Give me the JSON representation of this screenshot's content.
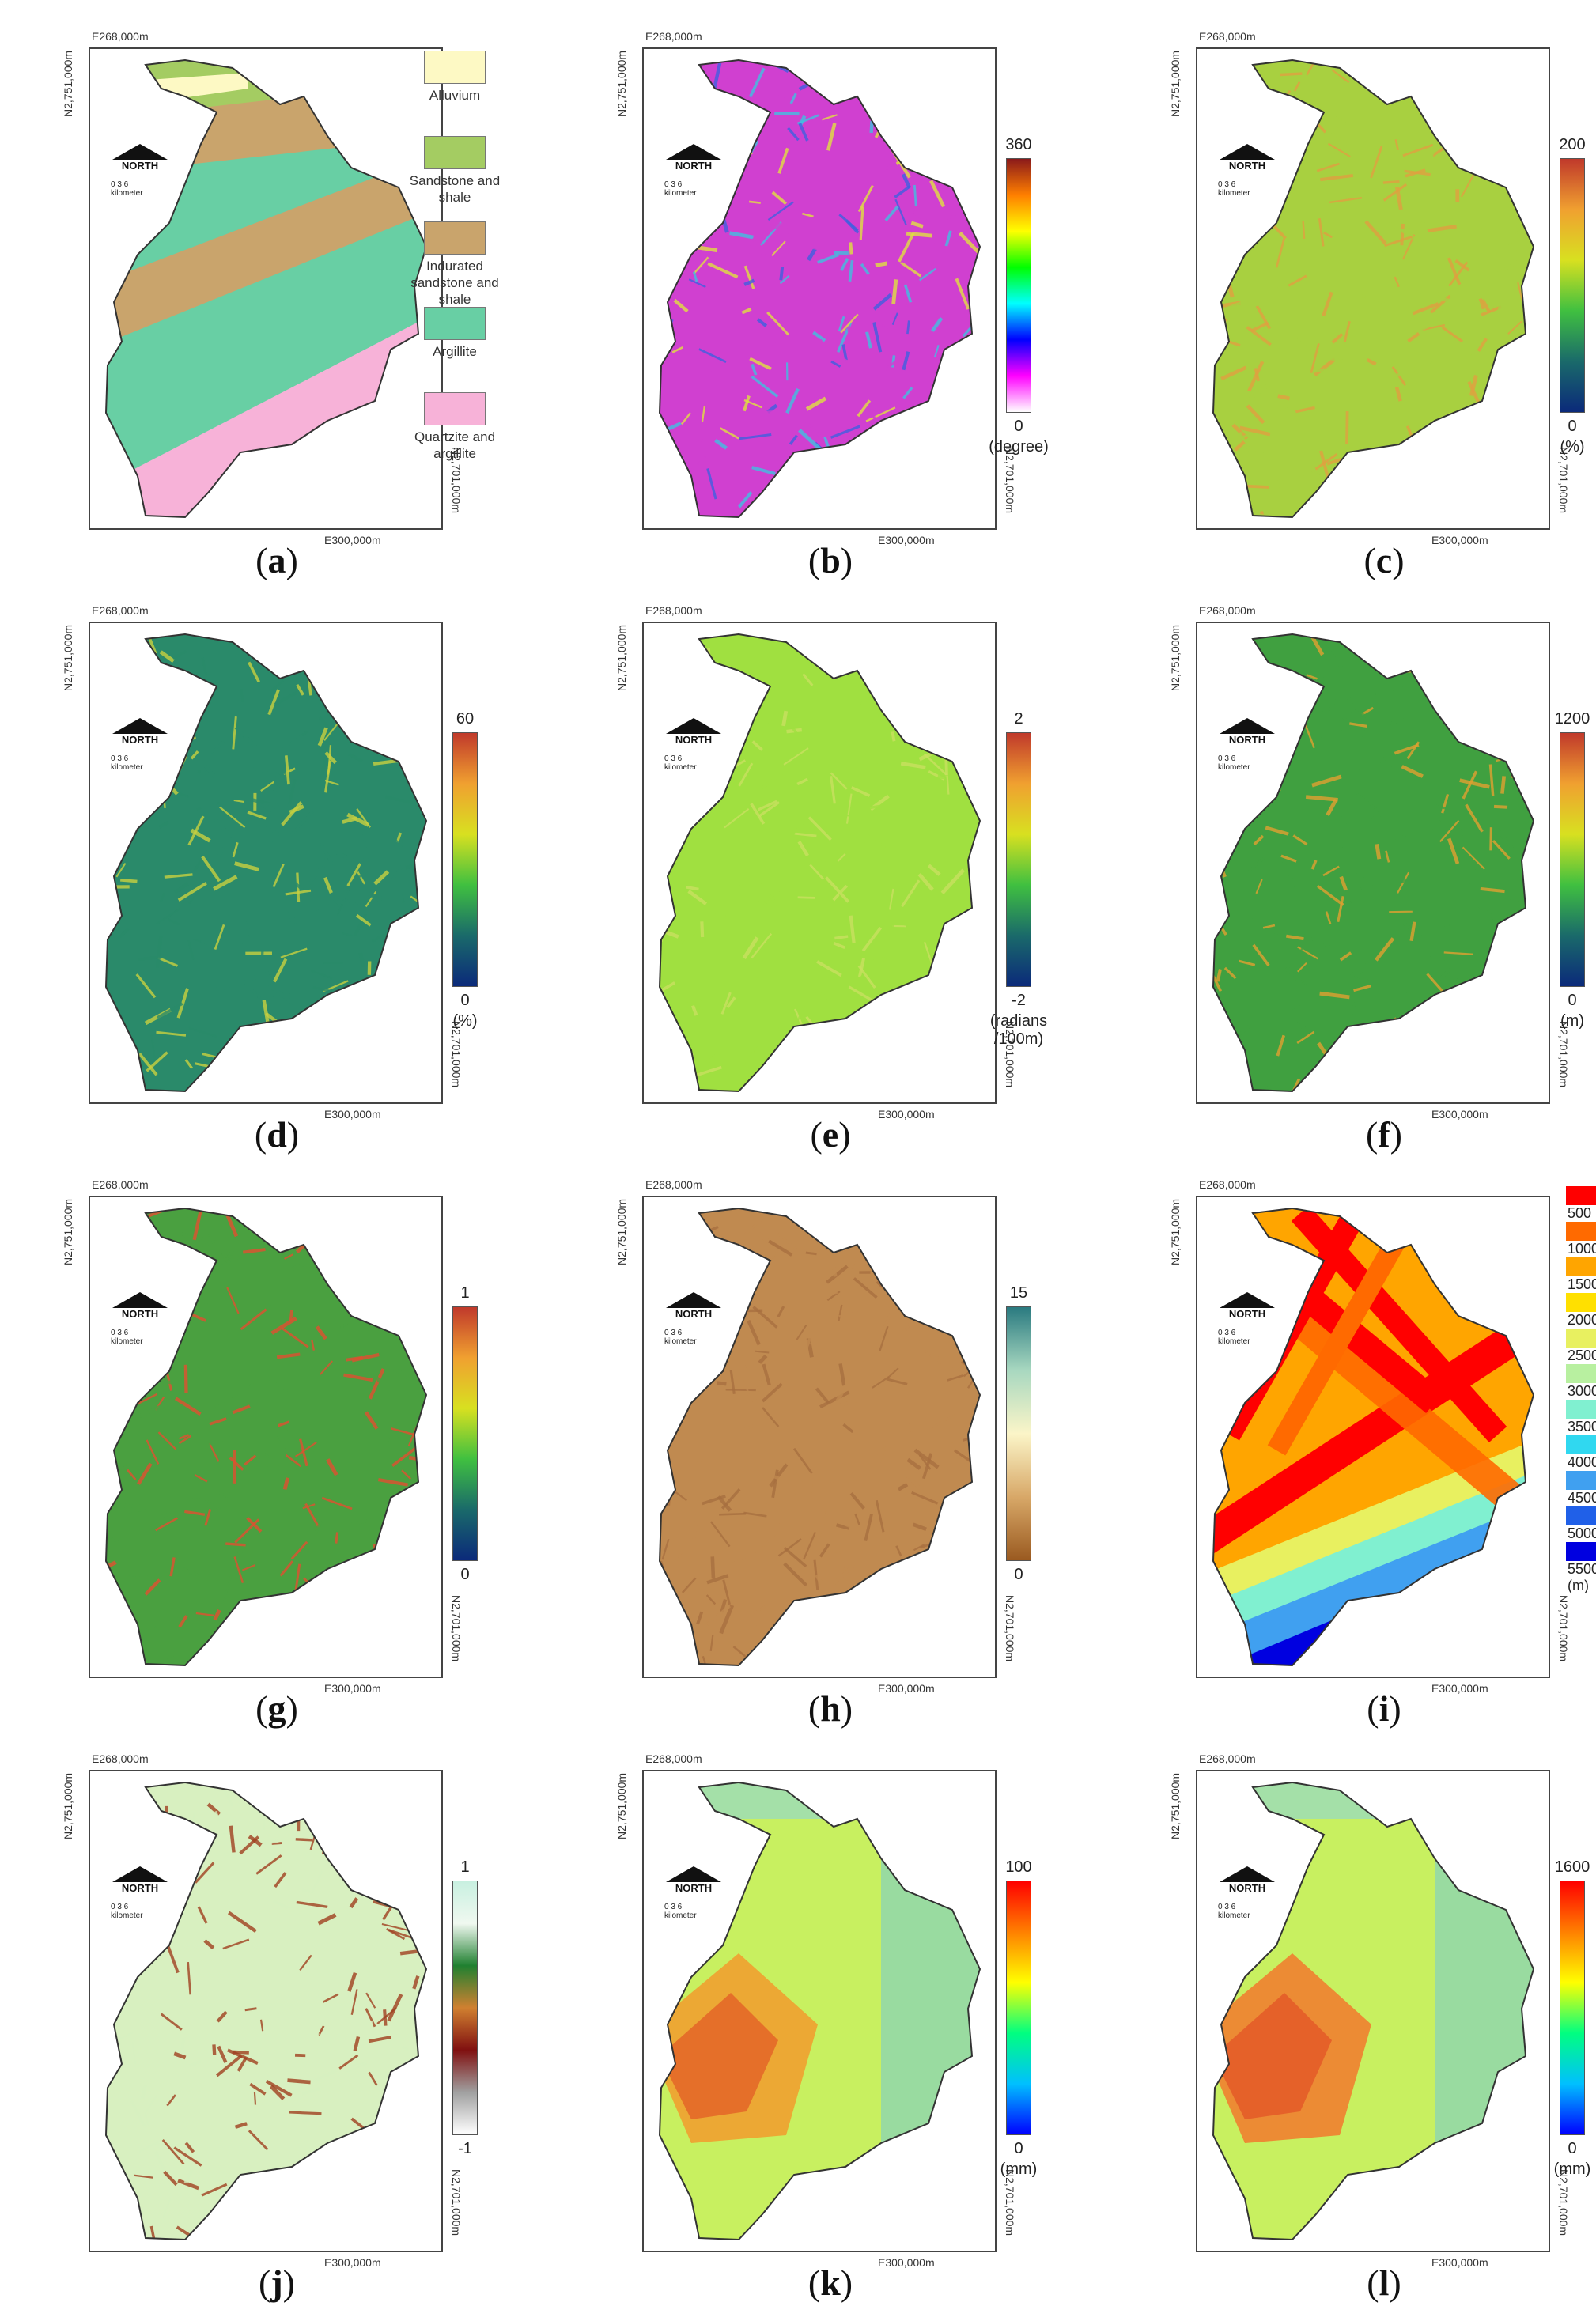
{
  "coords": {
    "top": "E268,000m",
    "left": "N2,751,000m",
    "right": "N2,701,000m",
    "bottom": "E300,000m"
  },
  "north": {
    "label": "NORTH",
    "scale_ticks": "0   3   6",
    "scale_unit": "kilometer"
  },
  "panels": [
    {
      "letter": "a",
      "type": "legend",
      "items": [
        {
          "label": "Alluvium",
          "color": "#fdf9c4"
        },
        {
          "label": "Sandstone and shale",
          "color": "#a4cc62"
        },
        {
          "label": "Indurated sandstone and shale",
          "color": "#c9a46c"
        },
        {
          "label": "Argillite",
          "color": "#68cfa4"
        },
        {
          "label": "Quartzite and argillite",
          "color": "#f7b2d8"
        }
      ]
    },
    {
      "letter": "b",
      "type": "bar",
      "max": "360",
      "min": "0",
      "unit": "(degree)",
      "colors": [
        "#8b1a1a",
        "#ff7f00",
        "#ffff00",
        "#00ff00",
        "#00ffff",
        "#0000ff",
        "#ff00ff",
        "#ffffff"
      ]
    },
    {
      "letter": "c",
      "type": "bar",
      "max": "200",
      "min": "0",
      "unit": "(%)",
      "colors": [
        "#c0392b",
        "#f0a030",
        "#d8e020",
        "#40c040",
        "#1a6a6a",
        "#0b2a7a"
      ]
    },
    {
      "letter": "d",
      "type": "bar",
      "max": "60",
      "min": "0",
      "unit": "(%)",
      "colors": [
        "#c0392b",
        "#f0a030",
        "#d8e020",
        "#40c040",
        "#1a6a6a",
        "#0b2a7a"
      ]
    },
    {
      "letter": "e",
      "type": "bar",
      "max": "2",
      "min": "-2",
      "unit": "(radians /100m)",
      "colors": [
        "#c0392b",
        "#f0a030",
        "#d8e020",
        "#40c040",
        "#1a6a6a",
        "#0b2a7a"
      ]
    },
    {
      "letter": "f",
      "type": "bar",
      "max": "1200",
      "min": "0",
      "unit": "(m)",
      "colors": [
        "#c0392b",
        "#f0a030",
        "#d8e020",
        "#40c040",
        "#1a6a6a",
        "#0b2a7a"
      ]
    },
    {
      "letter": "g",
      "type": "bar",
      "max": "1",
      "min": "0",
      "unit": "",
      "colors": [
        "#c0392b",
        "#f0a030",
        "#d8e020",
        "#40c040",
        "#1a6a6a",
        "#0b2a7a"
      ]
    },
    {
      "letter": "h",
      "type": "bar",
      "max": "15",
      "min": "0",
      "unit": "",
      "colors": [
        "#2a7a80",
        "#a8d8c0",
        "#fbf5c8",
        "#d8a868",
        "#9a5a20"
      ]
    },
    {
      "letter": "i",
      "type": "classes",
      "unit": "(m)",
      "classes": [
        {
          "label": "500",
          "color": "#ff0000"
        },
        {
          "label": "1000",
          "color": "#ff6a00"
        },
        {
          "label": "1500",
          "color": "#ffa500"
        },
        {
          "label": "2000",
          "color": "#ffe000"
        },
        {
          "label": "2500",
          "color": "#e8f060"
        },
        {
          "label": "3000",
          "color": "#b8f0a0"
        },
        {
          "label": "3500",
          "color": "#80f0d0"
        },
        {
          "label": "4000",
          "color": "#30d8f0"
        },
        {
          "label": "4500",
          "color": "#40a0f0"
        },
        {
          "label": "5000",
          "color": "#2060e8"
        },
        {
          "label": "5500",
          "color": "#0000e0"
        }
      ]
    },
    {
      "letter": "j",
      "type": "bar",
      "max": "1",
      "min": "-1",
      "unit": "",
      "colors": [
        "#c8f0e0",
        "#f0f8f0",
        "#208030",
        "#d08030",
        "#801010",
        "#a0a0a0",
        "#ffffff"
      ]
    },
    {
      "letter": "k",
      "type": "bar",
      "max": "100",
      "min": "0",
      "unit": "(mm)",
      "colors": [
        "#ff0000",
        "#ff8000",
        "#ffff00",
        "#00ff80",
        "#00c0ff",
        "#0000ff"
      ]
    },
    {
      "letter": "l",
      "type": "bar",
      "max": "1600",
      "min": "0",
      "unit": "(mm)",
      "colors": [
        "#ff0000",
        "#ff8000",
        "#ffff00",
        "#00ff80",
        "#00c0ff",
        "#0000ff"
      ]
    }
  ],
  "fills": {
    "b": [
      "#d040d0",
      "#40c0e0",
      "#e0e040",
      "#4060e0"
    ],
    "c": [
      "#a8d040",
      "#e0a040"
    ],
    "d": [
      "#2a8a6a",
      "#c8d040"
    ],
    "e": [
      "#a0e040",
      "#c8e060"
    ],
    "f": [
      "#40a040",
      "#e0a030"
    ],
    "g": [
      "#4aa040",
      "#e05030"
    ],
    "h": [
      "#c08a50",
      "#a87040"
    ],
    "j": [
      "#d8f0c0",
      "#a04020"
    ],
    "k": [
      "#c8f060",
      "#f0a030"
    ],
    "l": [
      "#c8f060",
      "#f08030"
    ]
  }
}
